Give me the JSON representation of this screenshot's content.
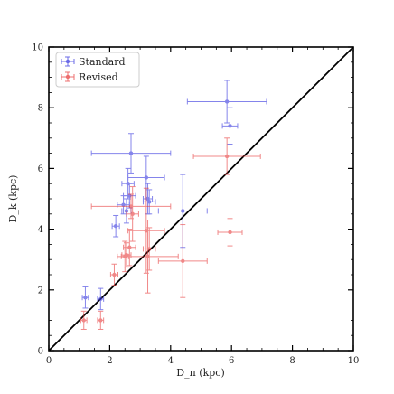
{
  "chart_data": {
    "type": "scatter",
    "xlabel": "D_π (kpc)",
    "ylabel": "D_k (kpc)",
    "xlim": [
      0,
      10
    ],
    "ylim": [
      0,
      10
    ],
    "xticks": [
      0,
      2,
      4,
      6,
      8,
      10
    ],
    "yticks": [
      0,
      2,
      4,
      6,
      8,
      10
    ],
    "x_tick_labels": [
      "0",
      "2",
      "4",
      "6",
      "8",
      "10"
    ],
    "y_tick_labels": [
      "0",
      "2",
      "4",
      "6",
      "8",
      "10"
    ],
    "grid": false,
    "legend_position": "top-left",
    "reference_line": {
      "type": "identity",
      "color": "#000000"
    },
    "series": [
      {
        "name": "Standard",
        "color": "#3a3adf",
        "points": [
          {
            "x": 1.2,
            "y": 1.75,
            "xerr": 0.1,
            "yerr": 0.35
          },
          {
            "x": 1.7,
            "y": 1.7,
            "xerr": 0.1,
            "yerr": 0.35
          },
          {
            "x": 2.2,
            "y": 4.1,
            "xerr": 0.12,
            "yerr": 0.35
          },
          {
            "x": 2.45,
            "y": 4.8,
            "xerr": 0.2,
            "yerr": 0.3
          },
          {
            "x": 2.55,
            "y": 4.6,
            "xerr": 0.15,
            "yerr": 0.4
          },
          {
            "x": 2.6,
            "y": 5.5,
            "xerr": 0.2,
            "yerr": 0.5
          },
          {
            "x": 2.65,
            "y": 5.1,
            "xerr": 0.2,
            "yerr": 0.4
          },
          {
            "x": 2.7,
            "y": 6.5,
            "xerr": 1.3,
            "yerr": 0.65
          },
          {
            "x": 3.2,
            "y": 5.7,
            "xerr": 0.6,
            "yerr": 0.7
          },
          {
            "x": 3.25,
            "y": 5.0,
            "xerr": 0.15,
            "yerr": 0.5
          },
          {
            "x": 3.3,
            "y": 4.9,
            "xerr": 0.2,
            "yerr": 0.4
          },
          {
            "x": 4.4,
            "y": 4.6,
            "xerr": 0.8,
            "yerr": 1.2
          },
          {
            "x": 5.85,
            "y": 8.2,
            "xerr": 1.3,
            "yerr": 0.7
          },
          {
            "x": 5.95,
            "y": 7.4,
            "xerr": 0.25,
            "yerr": 0.6
          }
        ]
      },
      {
        "name": "Revised",
        "color": "#e84040",
        "points": [
          {
            "x": 1.15,
            "y": 1.0,
            "xerr": 0.1,
            "yerr": 0.3
          },
          {
            "x": 1.7,
            "y": 1.0,
            "xerr": 0.1,
            "yerr": 0.3
          },
          {
            "x": 2.15,
            "y": 2.5,
            "xerr": 0.12,
            "yerr": 0.35
          },
          {
            "x": 2.5,
            "y": 3.1,
            "xerr": 0.12,
            "yerr": 0.5
          },
          {
            "x": 2.55,
            "y": 3.15,
            "xerr": 0.15,
            "yerr": 0.4
          },
          {
            "x": 2.65,
            "y": 3.4,
            "xerr": 0.2,
            "yerr": 0.6
          },
          {
            "x": 2.7,
            "y": 4.75,
            "xerr": 1.3,
            "yerr": 0.4
          },
          {
            "x": 2.75,
            "y": 4.5,
            "xerr": 0.2,
            "yerr": 0.9
          },
          {
            "x": 3.2,
            "y": 3.95,
            "xerr": 0.6,
            "yerr": 1.4
          },
          {
            "x": 3.25,
            "y": 3.1,
            "xerr": 1.0,
            "yerr": 1.2
          },
          {
            "x": 3.3,
            "y": 3.35,
            "xerr": 0.2,
            "yerr": 0.7
          },
          {
            "x": 4.4,
            "y": 2.95,
            "xerr": 0.8,
            "yerr": 1.2
          },
          {
            "x": 5.85,
            "y": 6.4,
            "xerr": 1.1,
            "yerr": 0.6
          },
          {
            "x": 5.95,
            "y": 3.9,
            "xerr": 0.4,
            "yerr": 0.45
          }
        ]
      }
    ]
  }
}
